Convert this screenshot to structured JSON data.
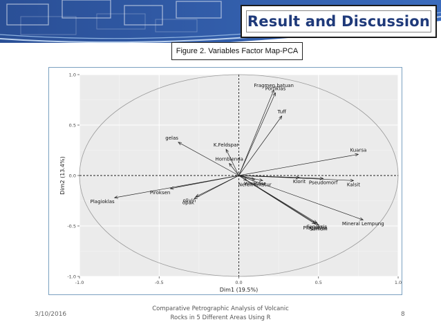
{
  "slide": {
    "title": "Result and Discussion",
    "figure_caption": "Figure 2. Variables Factor Map-PCA",
    "footer_date": "3/10/2016",
    "footer_title_line1": "Comparative Petrographic Analysis of Volcanic",
    "footer_title_line2": "Rocks in 5 Different Areas Using R",
    "page_number": "8",
    "accent_color": "#1f3a7a"
  },
  "chart_data": {
    "type": "scatter",
    "title": "",
    "xlabel": "Dim1 (19.5%)",
    "ylabel": "Dim2 (13.4%)",
    "xlim": [
      -1.0,
      1.0
    ],
    "ylim": [
      -1.0,
      1.0
    ],
    "x_ticks": [
      "-1.0",
      "-0.5",
      "0.0",
      "0.5",
      "1.0"
    ],
    "y_ticks": [
      "1.0",
      "0.5",
      "0.0",
      "-0.5",
      "-1.0"
    ],
    "grid": true,
    "correlation_circle": true,
    "vectors": [
      {
        "name": "Fragmen batuan",
        "x": 0.22,
        "y": 0.85
      },
      {
        "name": "Porfiklas",
        "x": 0.23,
        "y": 0.82
      },
      {
        "name": "Tuff",
        "x": 0.27,
        "y": 0.59
      },
      {
        "name": "gelas",
        "x": -0.38,
        "y": 0.33
      },
      {
        "name": "K.Feldspar",
        "x": -0.08,
        "y": 0.26
      },
      {
        "name": "Hornblenda",
        "x": -0.06,
        "y": 0.12
      },
      {
        "name": "Kuarsa",
        "x": 0.75,
        "y": 0.21
      },
      {
        "name": "Klorit",
        "x": 0.38,
        "y": -0.02
      },
      {
        "name": "Pseudomorf",
        "x": 0.53,
        "y": -0.03
      },
      {
        "name": "Kalsit",
        "x": 0.72,
        "y": -0.05
      },
      {
        "name": "Piroksen",
        "x": -0.43,
        "y": -0.13
      },
      {
        "name": "Plagioklas",
        "x": -0.78,
        "y": -0.22
      },
      {
        "name": "olivin",
        "x": -0.27,
        "y": -0.21
      },
      {
        "name": "opak",
        "x": -0.28,
        "y": -0.23
      },
      {
        "name": "Mineral Lempung",
        "x": 0.78,
        "y": -0.44
      },
      {
        "name": "Fenokris",
        "x": 0.49,
        "y": -0.47
      },
      {
        "name": "Sanidin",
        "x": 0.5,
        "y": -0.49
      },
      {
        "name": "Plagioklas",
        "x": 0.48,
        "y": -0.48
      },
      {
        "name": "Nefelin",
        "x": 0.05,
        "y": -0.05
      },
      {
        "name": "Vesikuler",
        "x": 0.1,
        "y": -0.04
      },
      {
        "name": "Tekstur",
        "x": 0.15,
        "y": -0.05
      }
    ]
  }
}
